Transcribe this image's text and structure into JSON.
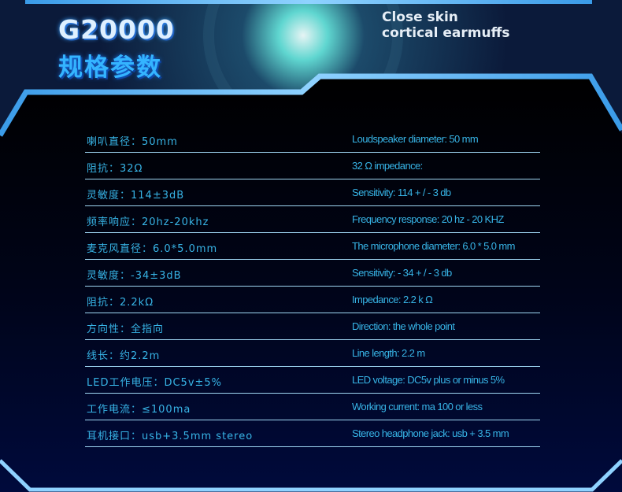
{
  "header": {
    "model": "G20000",
    "title_cn": "规格参数",
    "tagline_line1": "Close skin",
    "tagline_line2": "cortical earmuffs"
  },
  "colors": {
    "accent": "#37b4e6",
    "frame": "#5cb8f5",
    "divider": "#9fd6f2"
  },
  "specs": [
    {
      "cn": "喇叭直径：50mm",
      "en": "Loudspeaker diameter: 50 mm"
    },
    {
      "cn": "阻抗：32Ω",
      "en": "32 Ω impedance:"
    },
    {
      "cn": "灵敏度：114±3dB",
      "en": "Sensitivity: 114 + / - 3 db"
    },
    {
      "cn": "频率响应：20hz-20khz",
      "en": "Frequency response: 20 hz - 20 KHZ"
    },
    {
      "cn": "麦克风直径：6.0*5.0mm",
      "en": "The microphone diameter: 6.0 * 5.0 mm"
    },
    {
      "cn": "灵敏度：-34±3dB",
      "en": "Sensitivity: - 34 + / - 3 db"
    },
    {
      "cn": "阻抗：2.2kΩ",
      "en": "Impedance: 2.2 k Ω"
    },
    {
      "cn": "方向性：全指向",
      "en": "Direction: the whole point"
    },
    {
      "cn": "线长：约2.2m",
      "en": "Line length: 2.2 m"
    },
    {
      "cn": "LED工作电压：DC5v±5%",
      "en": " LED  voltage: DC5v plus or minus 5%"
    },
    {
      "cn": "工作电流：≤100ma",
      "en": "Working current: ma 100 or less"
    },
    {
      "cn": "耳机接口：usb+3.5mm stereo",
      "en": "Stereo headphone jack: usb + 3.5 mm"
    }
  ]
}
